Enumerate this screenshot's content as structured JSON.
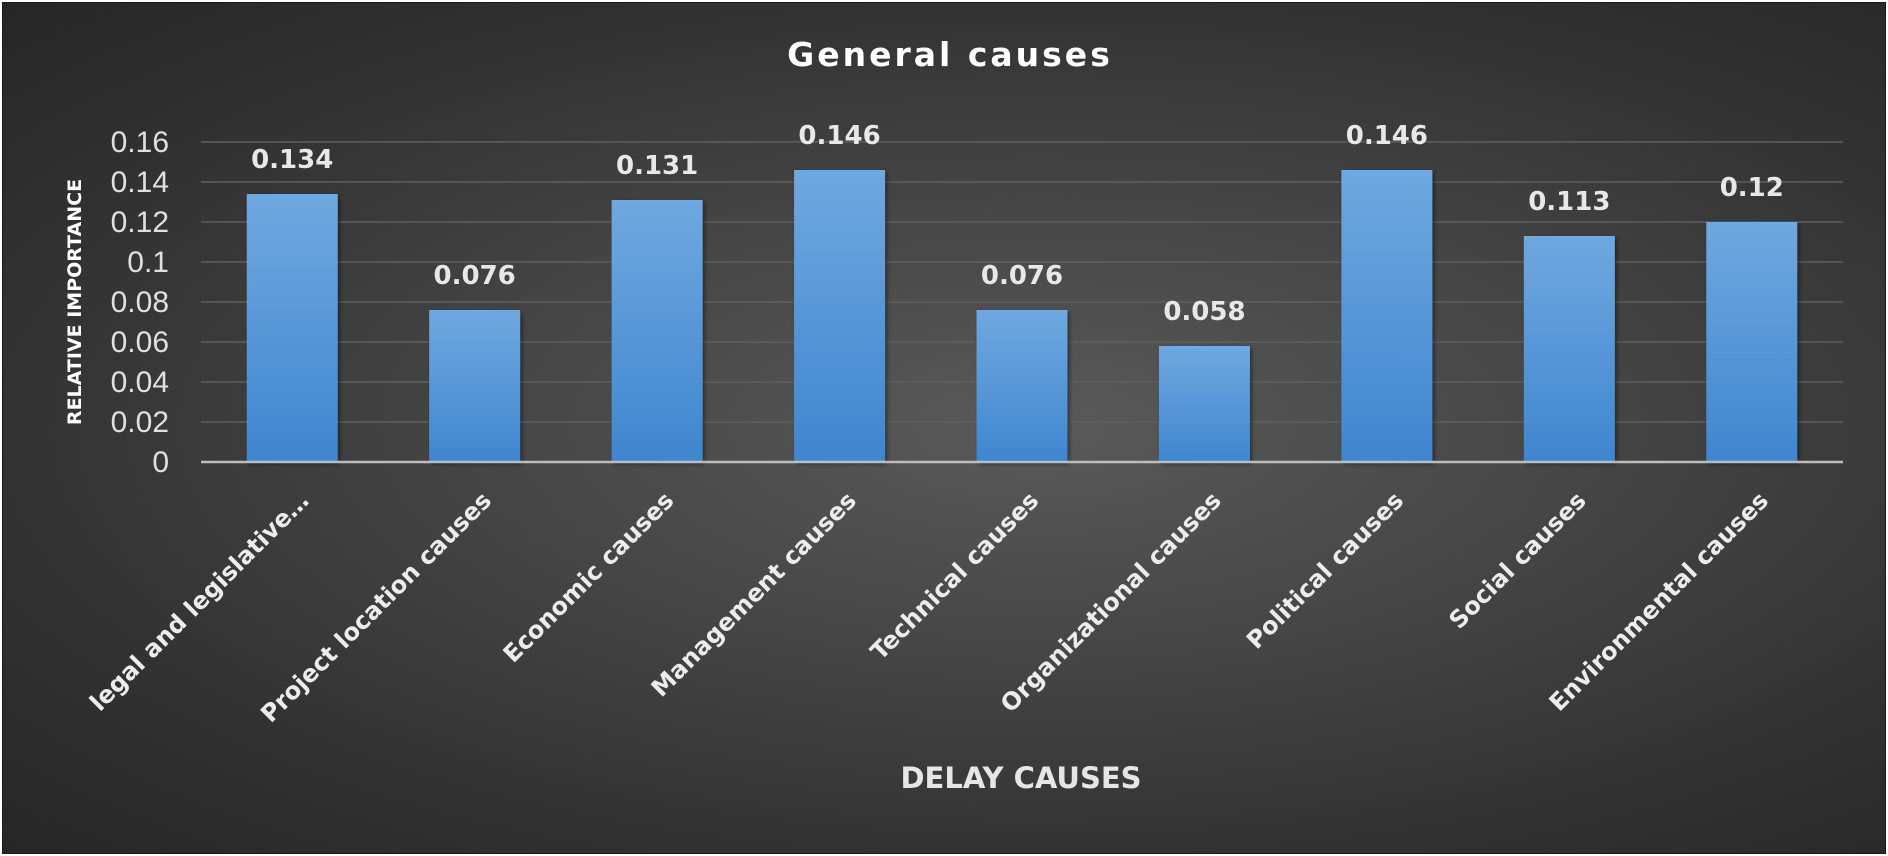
{
  "chart_data": {
    "type": "bar",
    "title": "General causes",
    "xlabel": "DELAY CAUSES",
    "ylabel": "RELATIVE IMPORTANCE",
    "categories": [
      "legal and legislative…",
      "Project location causes",
      "Economic causes",
      "Management causes",
      "Technical causes",
      "Organizational causes",
      "Political causes",
      "Social causes",
      "Environmental causes"
    ],
    "values": [
      0.134,
      0.076,
      0.131,
      0.146,
      0.076,
      0.058,
      0.146,
      0.113,
      0.12
    ],
    "data_labels": [
      "0.134",
      "0.076",
      "0.131",
      "0.146",
      "0.076",
      "0.058",
      "0.146",
      "0.113",
      "0.12"
    ],
    "yticks": [
      "0",
      "0.02",
      "0.04",
      "0.06",
      "0.08",
      "0.1",
      "0.12",
      "0.14",
      "0.16"
    ],
    "ylim": [
      0,
      0.16
    ],
    "grid": true,
    "legend": "none",
    "colors": {
      "bar_top": "#6fa8e0",
      "bar_bottom": "#3f86cf"
    }
  }
}
